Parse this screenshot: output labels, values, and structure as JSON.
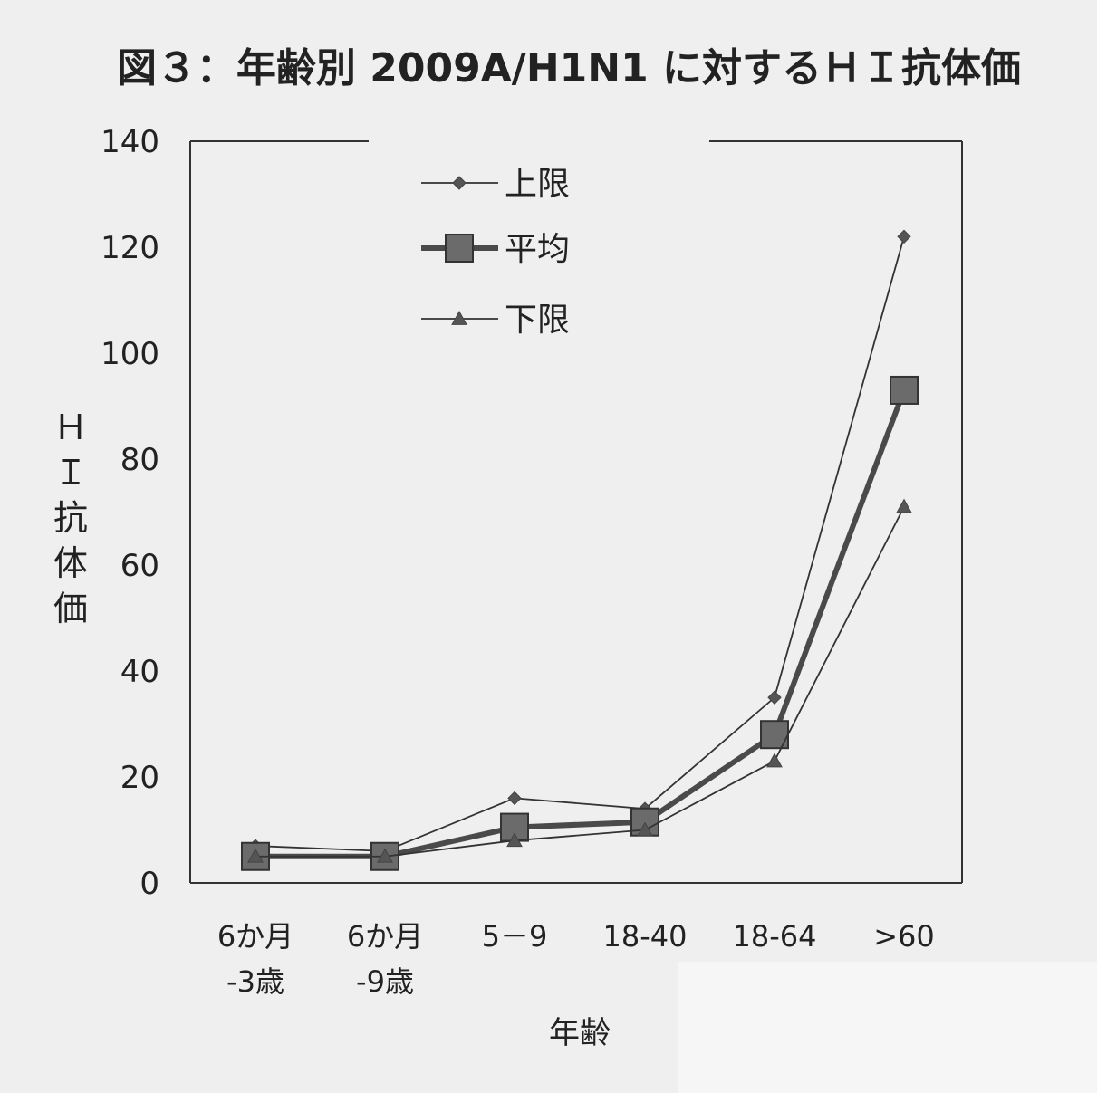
{
  "chart_data": {
    "type": "line",
    "title": "図３：年齢別 2009A/H1N1 に対するＨＩ抗体価",
    "xlabel": "年齢",
    "ylabel": "ＨＩ抗体価",
    "ylim": [
      0,
      140
    ],
    "yticks": [
      "0",
      "20",
      "40",
      "60",
      "80",
      "100",
      "120",
      "140"
    ],
    "categories": [
      [
        "6か月",
        "-3歳"
      ],
      [
        "6か月",
        "-9歳"
      ],
      [
        "5－9"
      ],
      [
        "18-40"
      ],
      [
        "18-64"
      ],
      [
        ">60"
      ]
    ],
    "legend_position": "top-left",
    "series": [
      {
        "name": "上限",
        "marker": "diamond",
        "color": "#555555",
        "values": [
          7,
          6,
          16,
          14,
          35,
          122
        ]
      },
      {
        "name": "平均",
        "marker": "square",
        "color": "#555555",
        "values": [
          5,
          5,
          10.5,
          11.5,
          28,
          93
        ]
      },
      {
        "name": "下限",
        "marker": "triangle",
        "color": "#555555",
        "values": [
          5,
          5,
          8,
          10,
          23,
          71
        ]
      }
    ]
  }
}
